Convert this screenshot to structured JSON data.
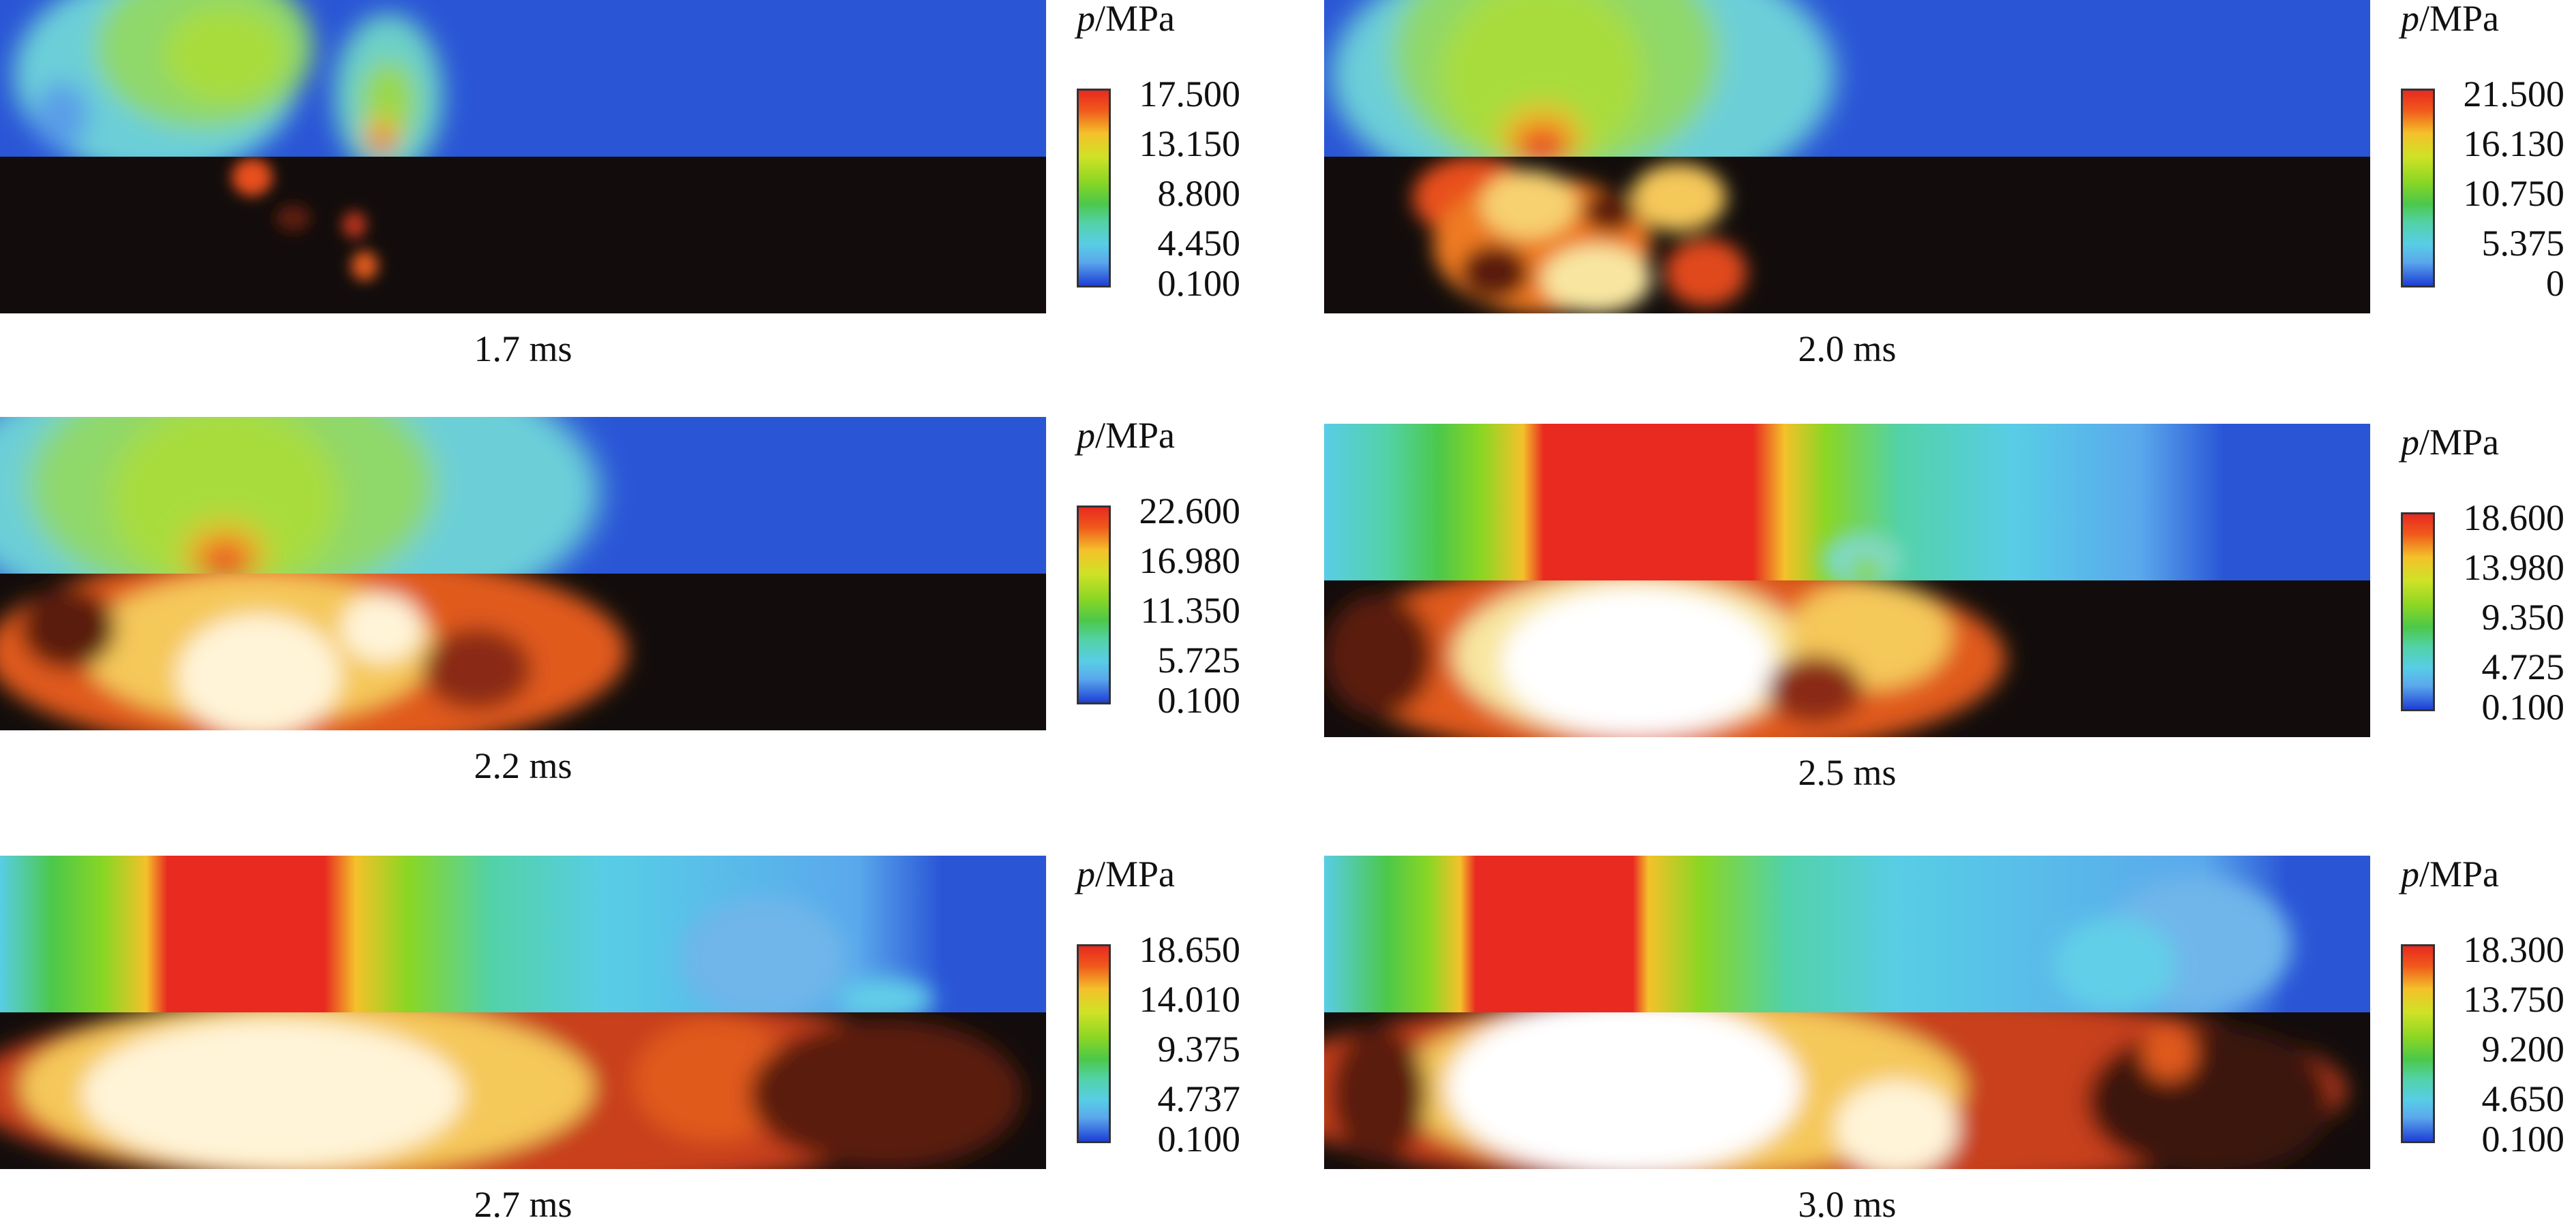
{
  "panels": [
    {
      "time": "1.7 ms",
      "legend_title_var": "p",
      "legend_title_unit": "/MPa",
      "ticks": [
        "17.500",
        "13.150",
        "8.800",
        "4.450",
        "0.100"
      ]
    },
    {
      "time": "2.0 ms",
      "legend_title_var": "p",
      "legend_title_unit": "/MPa",
      "ticks": [
        "21.500",
        "16.130",
        "10.750",
        "5.375",
        "0"
      ]
    },
    {
      "time": "2.2 ms",
      "legend_title_var": "p",
      "legend_title_unit": "/MPa",
      "ticks": [
        "22.600",
        "16.980",
        "11.350",
        "5.725",
        "0.100"
      ]
    },
    {
      "time": "2.5 ms",
      "legend_title_var": "p",
      "legend_title_unit": "/MPa",
      "ticks": [
        "18.600",
        "13.980",
        "9.350",
        "4.725",
        "0.100"
      ]
    },
    {
      "time": "2.7 ms",
      "legend_title_var": "p",
      "legend_title_unit": "/MPa",
      "ticks": [
        "18.650",
        "14.010",
        "9.375",
        "4.737",
        "0.100"
      ]
    },
    {
      "time": "3.0 ms",
      "legend_title_var": "p",
      "legend_title_unit": "/MPa",
      "ticks": [
        "18.300",
        "13.750",
        "9.200",
        "4.650",
        "0.100"
      ]
    }
  ],
  "colors": {
    "background_blue": "#2a56d6",
    "photo_dark": "#120d0c",
    "high_pressure_red": "#e82a20",
    "mid_green": "#8ad624",
    "low_cyan": "#58cde6"
  }
}
